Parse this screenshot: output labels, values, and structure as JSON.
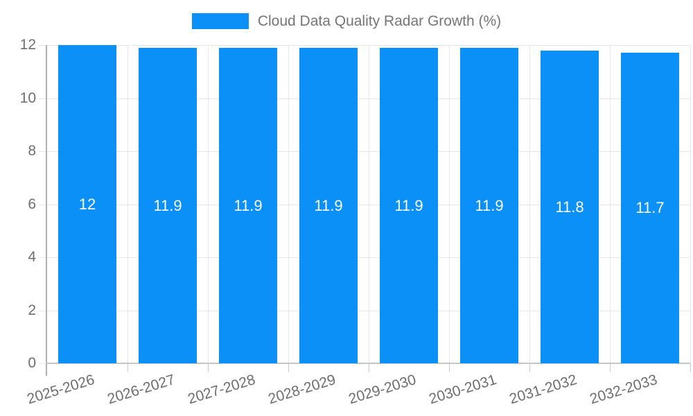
{
  "chart_data": {
    "type": "bar",
    "title": "Cloud Data Quality Radar Growth (%)",
    "categories": [
      "2025-2026",
      "2026-2027",
      "2027-2028",
      "2028-2029",
      "2029-2030",
      "2030-2031",
      "2031-2032",
      "2032-2033"
    ],
    "series": [
      {
        "name": "Cloud Data Quality Radar Growth (%)",
        "values": [
          12,
          11.9,
          11.9,
          11.9,
          11.9,
          11.9,
          11.8,
          11.7
        ]
      }
    ],
    "value_labels": [
      "12",
      "11.9",
      "11.9",
      "11.9",
      "11.9",
      "11.9",
      "11.8",
      "11.7"
    ],
    "xlabel": "",
    "ylabel": "",
    "ylim": [
      0,
      12
    ],
    "yticks": [
      0,
      2,
      4,
      6,
      8,
      10,
      12
    ],
    "grid": true,
    "legend_position": "top",
    "colors": {
      "bar": "#0a90f6",
      "value_label": "#ffffff",
      "axis_text": "#6e6e6e",
      "legend_text": "#757575",
      "gridline": "#e6e6e6",
      "axis_line": "#b0b0b0",
      "baseline": "#c6c6c6",
      "tick": "#cccccc",
      "background": "#ffffff"
    }
  }
}
